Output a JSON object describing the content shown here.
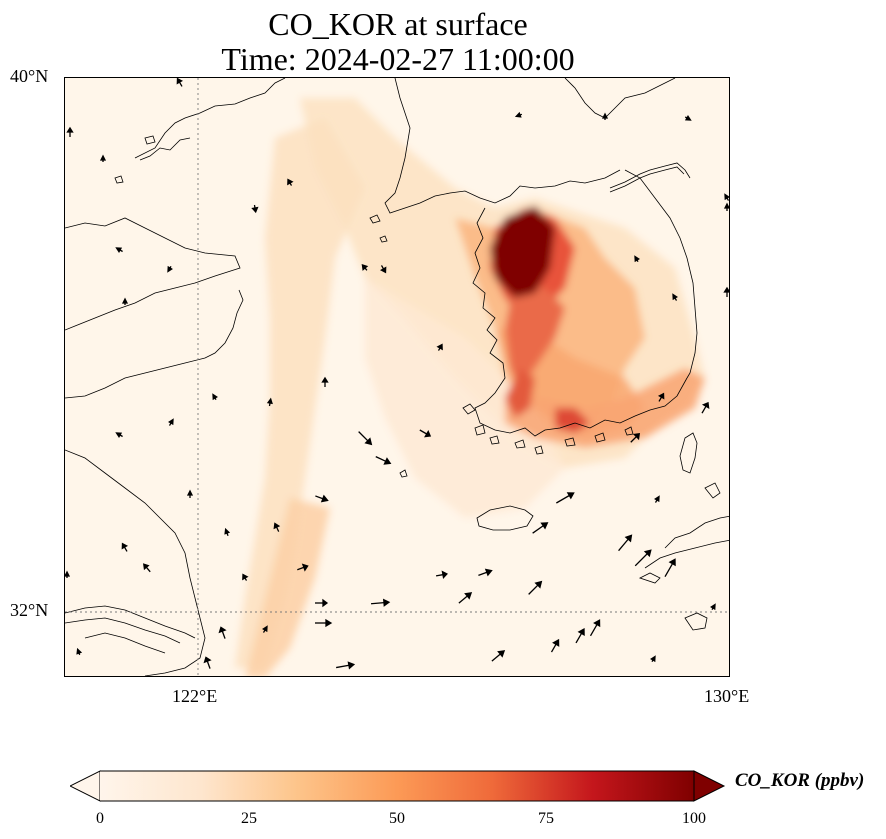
{
  "title": {
    "line1": "CO_KOR at surface",
    "line2": "Time: 2024-02-27 11:00:00"
  },
  "axes": {
    "lat_labels": [
      "40°N",
      "32°N"
    ],
    "lon_labels": [
      "122°E",
      "130°E"
    ]
  },
  "colorbar": {
    "label": "CO_KOR (ppbv)",
    "ticks": [
      "0",
      "25",
      "50",
      "75",
      "100"
    ],
    "min": 0,
    "max": 100,
    "colormap": [
      "#fff5eb",
      "#fdd9b2",
      "#fdae6b",
      "#f16913",
      "#d94801",
      "#a50f15",
      "#7f0000"
    ]
  },
  "map": {
    "lat_range": [
      31,
      40
    ],
    "lon_range": [
      120,
      130
    ],
    "background_color": "#fff6ea",
    "gridlines": "dotted"
  }
}
